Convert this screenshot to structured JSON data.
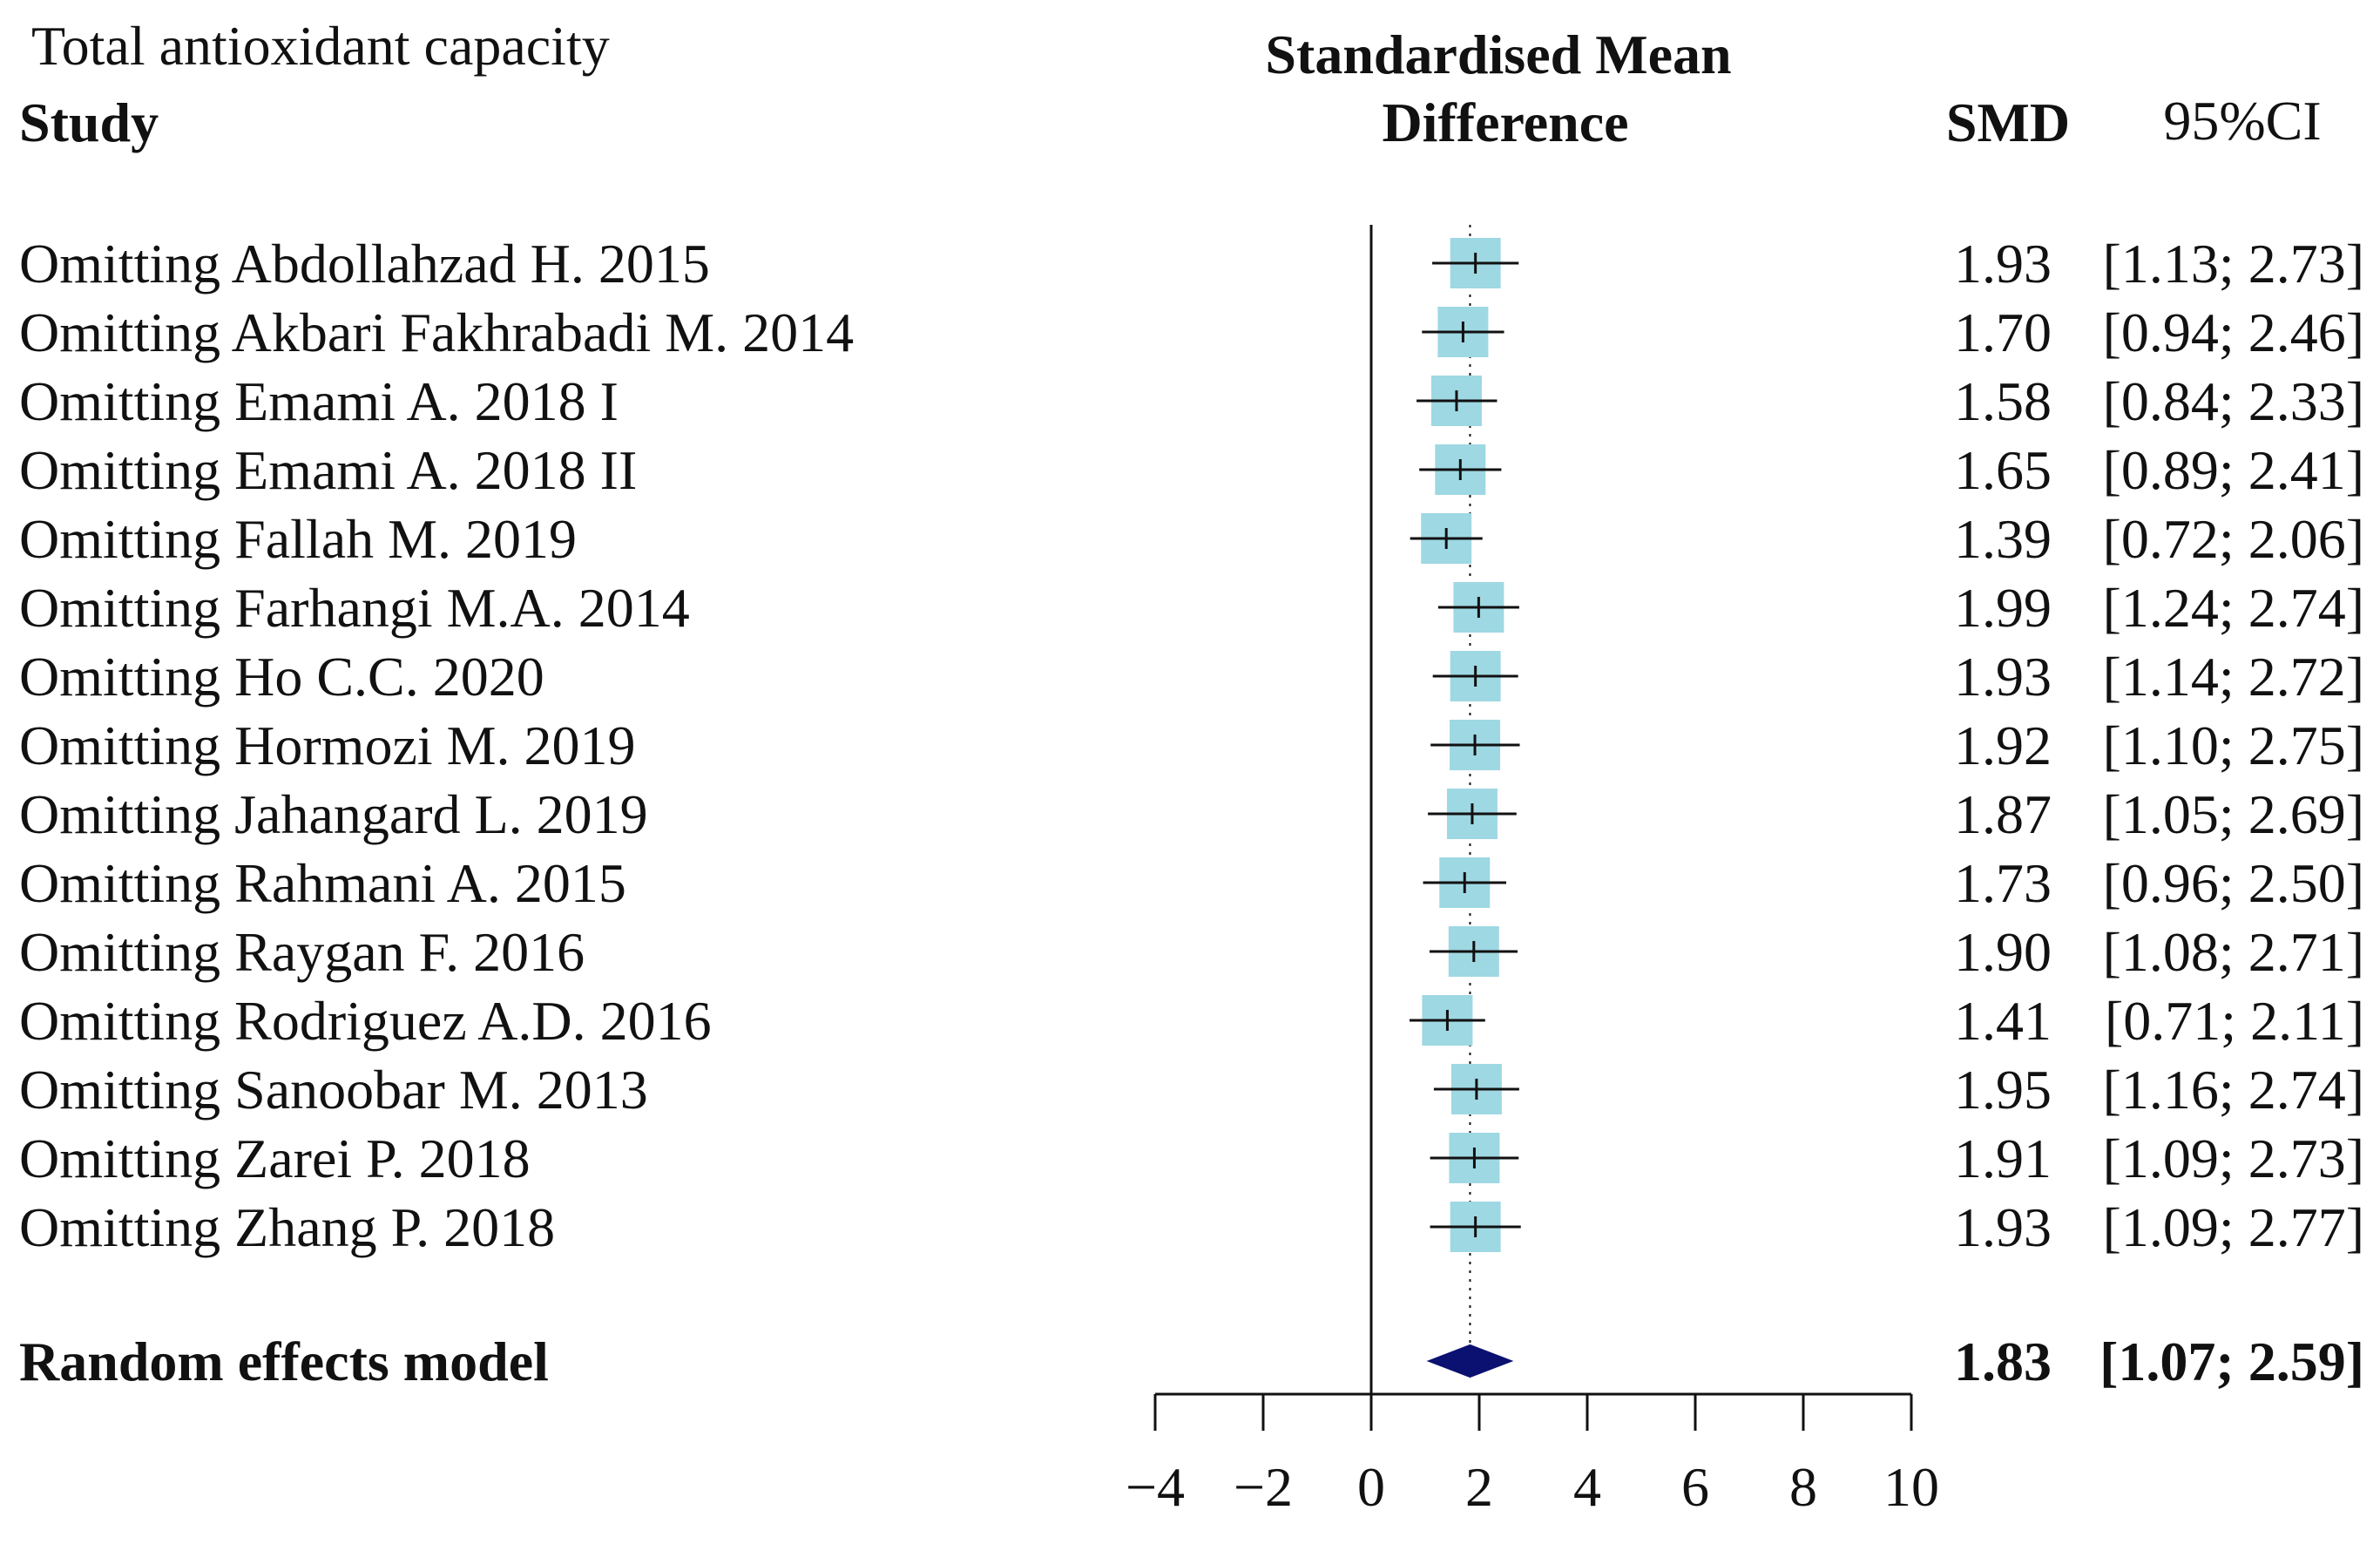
{
  "chart_data": {
    "type": "forest",
    "subtitle": "Total antioxidant capacity",
    "headers": {
      "study": "Study",
      "effect_line1": "Standardised Mean",
      "effect_line2": "Difference",
      "smd": "SMD",
      "ci": "95%CI"
    },
    "xlim": [
      -4,
      10
    ],
    "ticks": [
      -4,
      -2,
      0,
      2,
      4,
      6,
      8,
      10
    ],
    "tick_labels": [
      "−4",
      "−2",
      "0",
      "2",
      "4",
      "6",
      "8",
      "10"
    ],
    "reference_line": 0,
    "pooled_line": 1.83,
    "studies": [
      {
        "label": "Omitting Abdollahzad H. 2015",
        "smd": 1.93,
        "lower": 1.13,
        "upper": 2.73,
        "smd_text": "1.93",
        "ci_text": "[1.13; 2.73]"
      },
      {
        "label": "Omitting Akbari Fakhrabadi M. 2014",
        "smd": 1.7,
        "lower": 0.94,
        "upper": 2.46,
        "smd_text": "1.70",
        "ci_text": "[0.94; 2.46]"
      },
      {
        "label": "Omitting Emami A. 2018  I",
        "smd": 1.58,
        "lower": 0.84,
        "upper": 2.33,
        "smd_text": "1.58",
        "ci_text": "[0.84; 2.33]"
      },
      {
        "label": "Omitting Emami A. 2018  II",
        "smd": 1.65,
        "lower": 0.89,
        "upper": 2.41,
        "smd_text": "1.65",
        "ci_text": "[0.89; 2.41]"
      },
      {
        "label": "Omitting Fallah M. 2019",
        "smd": 1.39,
        "lower": 0.72,
        "upper": 2.06,
        "smd_text": "1.39",
        "ci_text": "[0.72; 2.06]"
      },
      {
        "label": "Omitting Farhangi M.A. 2014",
        "smd": 1.99,
        "lower": 1.24,
        "upper": 2.74,
        "smd_text": "1.99",
        "ci_text": "[1.24; 2.74]"
      },
      {
        "label": "Omitting Ho C.C. 2020",
        "smd": 1.93,
        "lower": 1.14,
        "upper": 2.72,
        "smd_text": "1.93",
        "ci_text": "[1.14; 2.72]"
      },
      {
        "label": "Omitting Hormozi M. 2019",
        "smd": 1.92,
        "lower": 1.1,
        "upper": 2.75,
        "smd_text": "1.92",
        "ci_text": "[1.10; 2.75]"
      },
      {
        "label": "Omitting Jahangard L. 2019",
        "smd": 1.87,
        "lower": 1.05,
        "upper": 2.69,
        "smd_text": "1.87",
        "ci_text": "[1.05; 2.69]"
      },
      {
        "label": "Omitting Rahmani A. 2015",
        "smd": 1.73,
        "lower": 0.96,
        "upper": 2.5,
        "smd_text": "1.73",
        "ci_text": "[0.96; 2.50]"
      },
      {
        "label": "Omitting Raygan F. 2016",
        "smd": 1.9,
        "lower": 1.08,
        "upper": 2.71,
        "smd_text": "1.90",
        "ci_text": "[1.08; 2.71]"
      },
      {
        "label": "Omitting Rodriguez A.D. 2016",
        "smd": 1.41,
        "lower": 0.71,
        "upper": 2.11,
        "smd_text": "1.41",
        "ci_text": "[0.71; 2.11]"
      },
      {
        "label": "Omitting Sanoobar M. 2013",
        "smd": 1.95,
        "lower": 1.16,
        "upper": 2.74,
        "smd_text": "1.95",
        "ci_text": "[1.16; 2.74]"
      },
      {
        "label": "Omitting Zarei P. 2018",
        "smd": 1.91,
        "lower": 1.09,
        "upper": 2.73,
        "smd_text": "1.91",
        "ci_text": "[1.09; 2.73]"
      },
      {
        "label": "Omitting Zhang P. 2018",
        "smd": 1.93,
        "lower": 1.09,
        "upper": 2.77,
        "smd_text": "1.93",
        "ci_text": "[1.09; 2.77]"
      }
    ],
    "pooled": {
      "label": "Random effects model",
      "smd": 1.83,
      "lower": 1.07,
      "upper": 2.59,
      "smd_text": "1.83",
      "ci_text": "[1.07; 2.59]"
    },
    "colors": {
      "box": "#9ed8e3",
      "diamond": "#0b1170",
      "line": "#111111"
    }
  }
}
